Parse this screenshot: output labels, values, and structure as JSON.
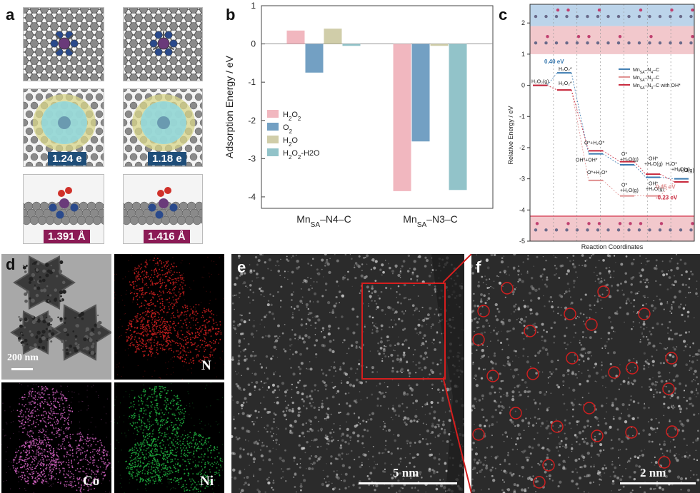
{
  "panel_labels": {
    "a": "a",
    "b": "b",
    "c": "c",
    "d": "d",
    "e": "e",
    "f": "f"
  },
  "panel_a": {
    "charge_left": "1.24 e",
    "charge_right": "1.18 e",
    "bond_left": "1.391 Å",
    "bond_right": "1.416 Å",
    "colors": {
      "charge_badge": "#1f4e79",
      "bond_badge": "#8b1a55",
      "carbon": "#8a8a8a",
      "nitrogen": "#2a4a8c",
      "manganese": "#6a3a7a",
      "oxygen": "#d0302a",
      "isosurface_yellow": "#d8d68a",
      "isosurface_cyan": "#8fd8e0"
    }
  },
  "chart_data": {
    "type": "bar",
    "ylabel": "Adsorption Energy / eV",
    "categories": [
      "Mn_SA–N4–C",
      "Mn_SA–N3–C"
    ],
    "category_main": [
      "Mn",
      "Mn"
    ],
    "category_sub": [
      "SA",
      "SA"
    ],
    "category_tail": [
      "–N4–C",
      "–N3–C"
    ],
    "ylim": [
      -4.3,
      1
    ],
    "yticks": [
      1,
      0,
      -1,
      -2,
      -3,
      -4
    ],
    "series": [
      {
        "name": "H2O2",
        "legend_main": "H",
        "legend_sub1": "2",
        "legend_mid": "O",
        "legend_sub2": "2",
        "legend_tail": "",
        "values": [
          0.35,
          -3.85
        ],
        "color": "#eeaab4"
      },
      {
        "name": "O2",
        "legend_main": "O",
        "legend_sub1": "2",
        "legend_mid": "",
        "legend_sub2": "",
        "legend_tail": "",
        "values": [
          -0.75,
          -2.55
        ],
        "color": "#5b8fb8"
      },
      {
        "name": "H2O",
        "legend_main": "H",
        "legend_sub1": "2",
        "legend_mid": "O",
        "legend_sub2": "",
        "legend_tail": "",
        "values": [
          0.4,
          -0.05
        ],
        "color": "#c8c49a"
      },
      {
        "name": "H2O2-H2O",
        "legend_main": "H",
        "legend_sub1": "2",
        "legend_mid": "O",
        "legend_sub2": "2",
        "legend_tail": "-H2O",
        "values": [
          -0.05,
          -3.82
        ],
        "color": "#7fb8c0"
      }
    ],
    "legend_placement": "bottom-left",
    "grid": false
  },
  "panel_c": {
    "ylabel": "Relative Energy / eV",
    "xlabel": "Reaction Coordinates",
    "yticks": [
      2,
      1,
      0,
      -1,
      -2,
      -3,
      -4,
      -5
    ],
    "legend": [
      "Mn_SA–N4–C",
      "Mn_SA–N3–C",
      "Mn_SA–N3–C with OH*"
    ],
    "legend_text": [
      [
        "Mn",
        "SA",
        "–N",
        "4",
        "–C"
      ],
      [
        "Mn",
        "SA",
        "–N",
        "3",
        "–C"
      ],
      [
        "Mn",
        "SA",
        "–N",
        "3",
        "–C with OH*"
      ]
    ],
    "series": [
      {
        "name": "Mn_SA–N4–C",
        "color": "#3a7ab0",
        "values": [
          0,
          0.4,
          -2.2,
          -2.55,
          -2.95,
          -3.0
        ]
      },
      {
        "name": "Mn_SA–N3–C",
        "color": "#e09090",
        "values": [
          0,
          -0.15,
          -3.05,
          -3.55,
          -3.55,
          -3.1
        ]
      },
      {
        "name": "Mn_SA–N3–C with OH*",
        "color": "#c8283c",
        "values": [
          0,
          -0.15,
          -2.1,
          -2.45,
          -2.85,
          -3.1
        ]
      }
    ],
    "annotations": {
      "h2o2g": "H₂O₂(g)",
      "h2o2_top": "H₂O₂*",
      "h2o2_mid": "H₂O₂*",
      "e040": "0.40 eV",
      "o_h2o_top": "O*+H₂O*",
      "oh_oh": "OH*+OH*",
      "o_h2o_bot": "O*+H₂O*",
      "o1": "O*",
      "o1b": "+H₂O(g)",
      "o2": "O*",
      "o2b": "+H₂O(g)",
      "oh1": "OH*",
      "oh1b": "+H₂O(g)",
      "h2o_star": "H₂O*",
      "h2o_star_b": "+H₂O(g)",
      "oh2": "OH*",
      "oh2b": "+H₂O(g)",
      "h2o_g": "H₂O(g)",
      "e045": "0.45 eV",
      "e023": "-0.23 eV"
    },
    "colors": {
      "band_top_blue": "#bcd4ea",
      "band_pink": "#f2c8cc",
      "band_bottom": "#e07080"
    }
  },
  "panel_d": {
    "scale": "200 nm",
    "labels": {
      "N": "N",
      "Co": "Co",
      "Ni": "Ni"
    },
    "colors": {
      "N": "#d02020",
      "Co": "#d060c0",
      "Ni": "#20b040"
    }
  },
  "panel_e": {
    "scale": "5 nm"
  },
  "panel_f": {
    "scale": "2 nm"
  }
}
